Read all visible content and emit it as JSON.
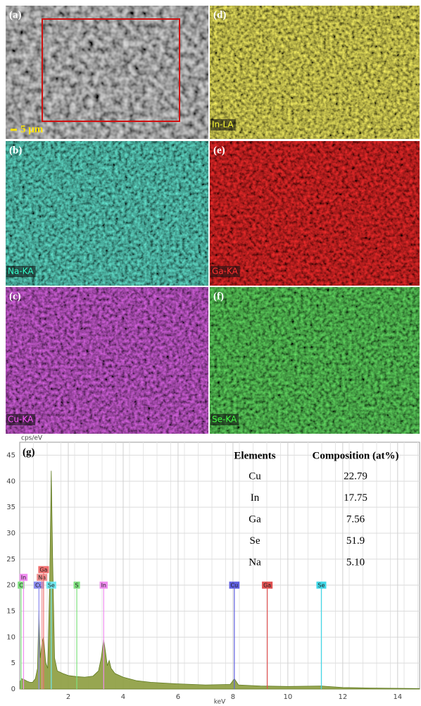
{
  "panels": [
    {
      "label": "(a)",
      "scale_bar": "5 μm"
    },
    {
      "label": "(b)",
      "element": "Na-KA"
    },
    {
      "label": "(c)",
      "element": "Cu-KA"
    },
    {
      "label": "(d)",
      "element": "In-LA"
    },
    {
      "label": "(e)",
      "element": "Ga-KA"
    },
    {
      "label": "(f)",
      "element": "Se-KA"
    }
  ],
  "table": {
    "header": [
      "Elements",
      "Composition (at%)"
    ],
    "rows": [
      [
        "Cu",
        "22.79"
      ],
      [
        "In",
        "17.75"
      ],
      [
        "Ga",
        "7.56"
      ],
      [
        "Se",
        "51.9"
      ],
      [
        "Na",
        "5.10"
      ]
    ]
  },
  "chart_data": {
    "type": "area",
    "panel_label": "(g)",
    "y_label": "cps/eV",
    "x_label": "keV",
    "xlim": [
      0.23,
      14.8
    ],
    "xticks": [
      2,
      4,
      6,
      8,
      10,
      12,
      14
    ],
    "ylim": [
      0,
      47.5
    ],
    "yticks": [
      0,
      5,
      10,
      15,
      20,
      25,
      30,
      35,
      40,
      45
    ],
    "grid": true,
    "series": [
      {
        "color": "#8c9c3e",
        "x": [
          0.25,
          0.3,
          0.4,
          0.5,
          0.6,
          0.7,
          0.8,
          0.88,
          0.93,
          0.98,
          1.04,
          1.1,
          1.18,
          1.25,
          1.32,
          1.38,
          1.43,
          1.5,
          1.6,
          1.8,
          2.0,
          2.3,
          2.6,
          2.9,
          3.1,
          3.2,
          3.29,
          3.36,
          3.42,
          3.49,
          3.56,
          3.7,
          4.0,
          4.5,
          5.0,
          6.0,
          7.0,
          7.9,
          8.05,
          8.2,
          9.0,
          10.0,
          11.2,
          12.0,
          13.0,
          14.8
        ],
        "values": [
          1.5,
          2,
          1.8,
          1.5,
          1.3,
          1.3,
          2,
          4,
          15,
          6,
          9,
          10,
          5,
          4,
          20,
          42,
          25,
          6,
          3.5,
          3,
          2.6,
          2.4,
          2.3,
          2.5,
          3.5,
          6,
          9.5,
          7,
          4.5,
          5.5,
          4,
          3,
          2.3,
          1.6,
          1.3,
          1,
          0.8,
          0.9,
          2,
          0.8,
          0.6,
          0.5,
          0.6,
          0.3,
          0.2,
          0.1
        ]
      }
    ],
    "markers": [
      {
        "label": "C",
        "x": 0.28,
        "color": "#7ee07e"
      },
      {
        "label": "In",
        "x": 0.37,
        "color": "#f08cf0"
      },
      {
        "label": "Cu",
        "x": 0.93,
        "color": "#8c8cf0"
      },
      {
        "label": "Na",
        "x": 1.04,
        "color": "#f09090"
      },
      {
        "label": "Ga",
        "x": 1.1,
        "color": "#f07070"
      },
      {
        "label": "Se",
        "x": 1.38,
        "color": "#70e8f0"
      },
      {
        "label": "S",
        "x": 2.31,
        "color": "#7ee07e"
      },
      {
        "label": "In",
        "x": 3.29,
        "color": "#f08cf0"
      },
      {
        "label": "Cu",
        "x": 8.05,
        "color": "#6060e0"
      },
      {
        "label": "Ga",
        "x": 9.25,
        "color": "#e05050"
      },
      {
        "label": "Se",
        "x": 11.22,
        "color": "#40d8e8"
      }
    ]
  }
}
